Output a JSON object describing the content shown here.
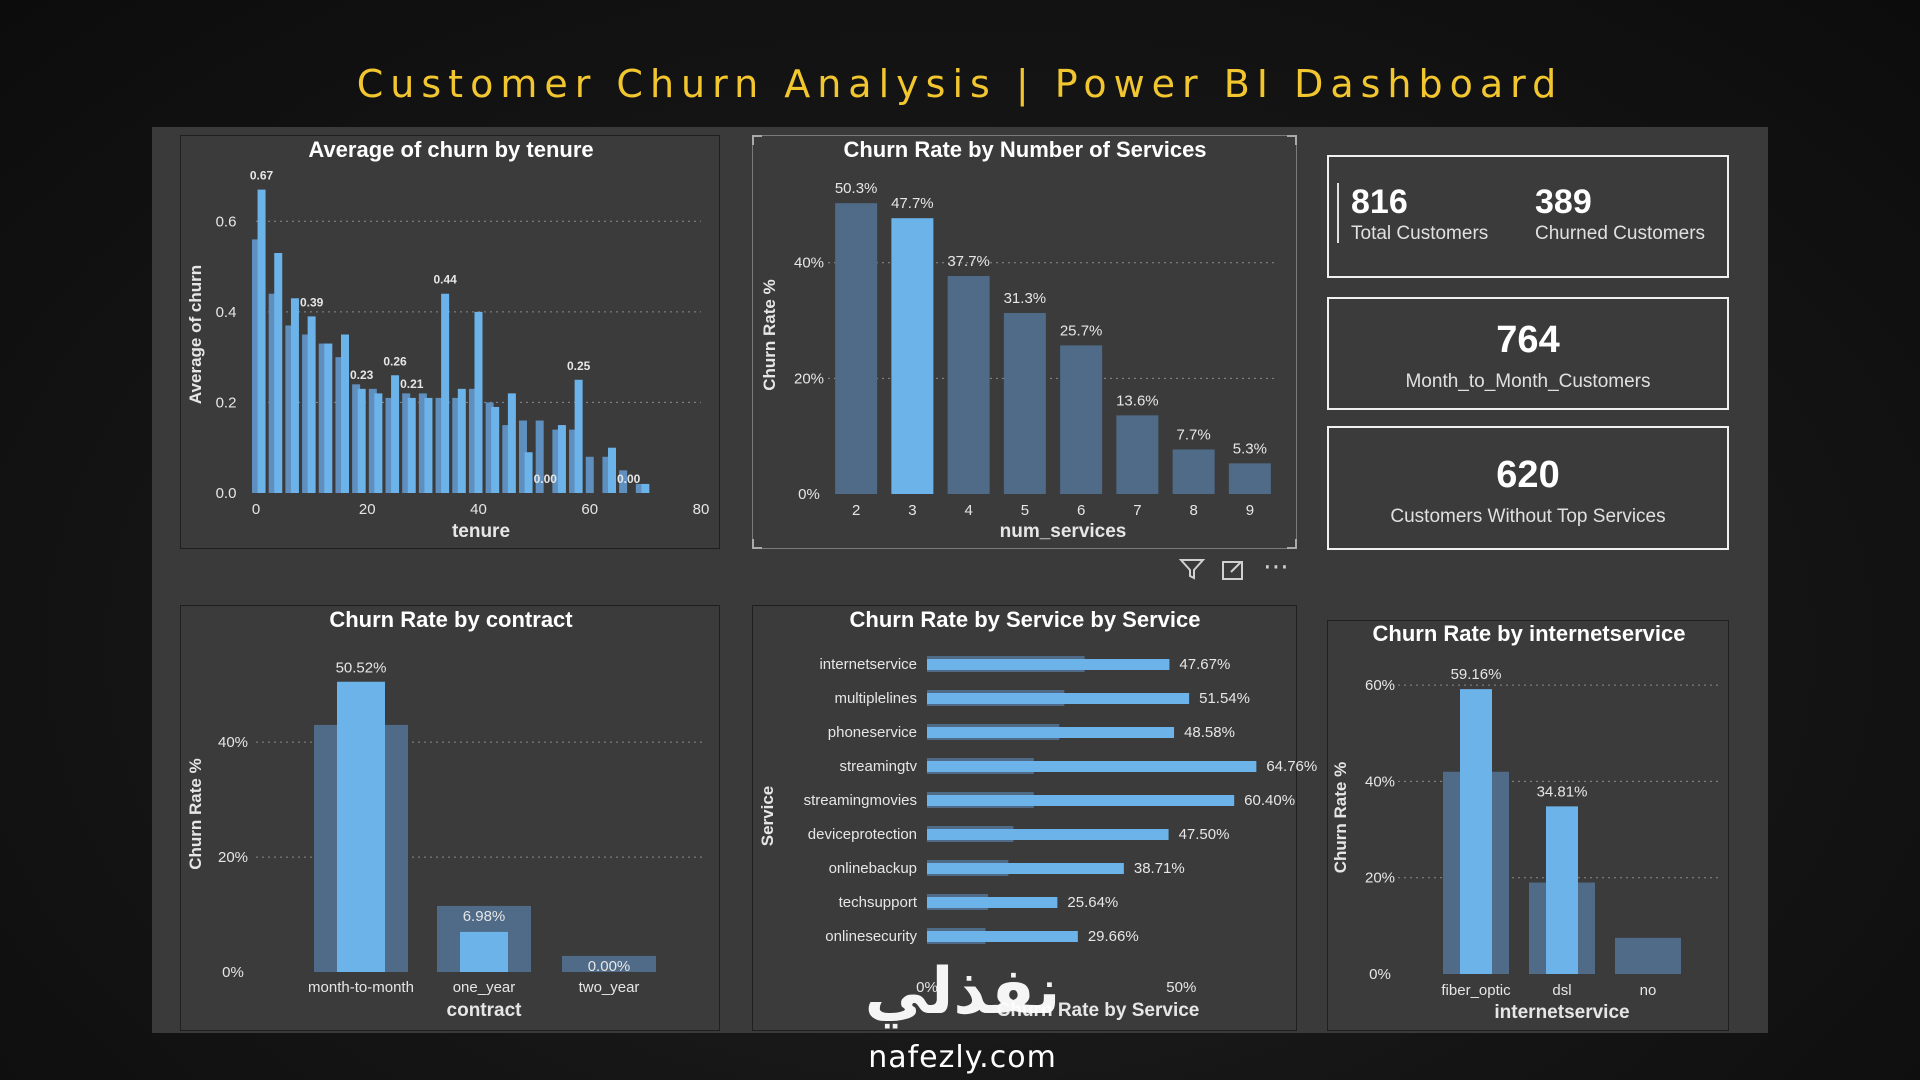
{
  "page": {
    "title": "Customer Churn Analysis | Power BI Dashboard"
  },
  "watermark": {
    "logo_text": "نفذلي",
    "url": "nafezly.com"
  },
  "colors": {
    "bar_light": "#6cb3ea",
    "bar_dark": "#4f6b88",
    "title": "#f2c62e",
    "panel": "#3b3b3b"
  },
  "kpis": {
    "total_customers": {
      "value": "816",
      "label": "Total Customers"
    },
    "churned_customers": {
      "value": "389",
      "label": "Churned Customers"
    },
    "month_to_month": {
      "value": "764",
      "label": "Month_to_Month_Customers"
    },
    "without_top_services": {
      "value": "620",
      "label": "Customers Without Top Services"
    }
  },
  "toolbar": {
    "icons": [
      "filter-icon",
      "focus-mode-icon",
      "more-options-icon"
    ]
  },
  "chart_data": [
    {
      "id": "tenure",
      "type": "bar",
      "title": "Average of churn by tenure",
      "xlabel": "tenure",
      "ylabel": "Average of churn",
      "xlim": [
        0,
        80
      ],
      "ylim": [
        0,
        0.7
      ],
      "x_ticks": [
        "0",
        "20",
        "40",
        "60",
        "80"
      ],
      "y_ticks": [
        "0.0",
        "0.2",
        "0.4",
        "0.6"
      ],
      "grid": true,
      "x": [
        0,
        1,
        3,
        4,
        6,
        7,
        9,
        10,
        12,
        13,
        15,
        16,
        18,
        19,
        21,
        22,
        24,
        25,
        27,
        28,
        30,
        31,
        33,
        34,
        36,
        37,
        39,
        40,
        42,
        43,
        45,
        46,
        48,
        49,
        51,
        52,
        54,
        55,
        57,
        58,
        60,
        61,
        63,
        64,
        66,
        67,
        69,
        70,
        72
      ],
      "series": [
        {
          "values": [
            0.56,
            0.67,
            0.44,
            0.53,
            0.37,
            0.43,
            0.35,
            0.39,
            0.33,
            0.33,
            0.3,
            0.35,
            0.24,
            0.23,
            0.23,
            0.22,
            0.21,
            0.26,
            0.22,
            0.21,
            0.22,
            0.21,
            0.21,
            0.44,
            0.21,
            0.23,
            0.23,
            0.4,
            0.2,
            0.19,
            0.15,
            0.22,
            0.16,
            0.09,
            0.16,
            0.0,
            0.14,
            0.15,
            0.14,
            0.25,
            0.08,
            0.0,
            0.08,
            0.1,
            0.05,
            0.0,
            0.02,
            0.02,
            0.0
          ]
        }
      ],
      "data_labels": [
        {
          "x": 1,
          "y": 0.67,
          "label": "0.67"
        },
        {
          "x": 10,
          "y": 0.39,
          "label": "0.39"
        },
        {
          "x": 19,
          "y": 0.23,
          "label": "0.23"
        },
        {
          "x": 25,
          "y": 0.26,
          "label": "0.26"
        },
        {
          "x": 28,
          "y": 0.21,
          "label": "0.21"
        },
        {
          "x": 34,
          "y": 0.44,
          "label": "0.44"
        },
        {
          "x": 52,
          "y": 0.0,
          "label": "0.00"
        },
        {
          "x": 58,
          "y": 0.25,
          "label": "0.25"
        },
        {
          "x": 67,
          "y": 0.0,
          "label": "0.00"
        }
      ]
    },
    {
      "id": "services",
      "type": "bar",
      "title": "Churn Rate by Number of Services",
      "xlabel": "num_services",
      "ylabel": "Churn Rate %",
      "ylim": [
        0,
        55
      ],
      "y_ticks": [
        "0%",
        "20%",
        "40%"
      ],
      "categories": [
        "2",
        "3",
        "4",
        "5",
        "6",
        "7",
        "8",
        "9"
      ],
      "values": [
        50.3,
        47.7,
        37.7,
        31.3,
        25.7,
        13.6,
        7.7,
        5.3
      ],
      "labels": [
        "50.3%",
        "47.7%",
        "37.7%",
        "31.3%",
        "25.7%",
        "13.6%",
        "7.7%",
        "5.3%"
      ],
      "highlight_index": 1
    },
    {
      "id": "contract",
      "type": "bar",
      "title": "Churn Rate by contract",
      "xlabel": "contract",
      "ylabel": "Churn Rate %",
      "ylim": [
        0,
        55
      ],
      "y_ticks": [
        "0%",
        "20%",
        "40%"
      ],
      "categories": [
        "month-to-month",
        "one_year",
        "two_year"
      ],
      "back_values": [
        43,
        11.5,
        2.8
      ],
      "values": [
        50.52,
        6.98,
        0.0
      ],
      "labels": [
        "50.52%",
        "6.98%",
        "0.00%"
      ]
    },
    {
      "id": "service",
      "type": "bar",
      "orientation": "horizontal",
      "title": "Churn Rate by Service by Service",
      "xlabel": "Churn Rate by Service",
      "ylabel": "Service",
      "xlim": [
        0,
        70
      ],
      "x_ticks": [
        "0%",
        "50%"
      ],
      "categories": [
        "internetservice",
        "multiplelines",
        "phoneservice",
        "streamingtv",
        "streamingmovies",
        "deviceprotection",
        "onlinebackup",
        "techsupport",
        "onlinesecurity"
      ],
      "back_values": [
        31,
        27,
        26,
        21,
        21,
        17,
        16,
        12,
        11.5
      ],
      "values": [
        47.67,
        51.54,
        48.58,
        64.76,
        60.4,
        47.5,
        38.71,
        25.64,
        29.66
      ],
      "labels": [
        "47.67%",
        "51.54%",
        "48.58%",
        "64.76%",
        "60.40%",
        "47.50%",
        "38.71%",
        "25.64%",
        "29.66%"
      ]
    },
    {
      "id": "internet",
      "type": "bar",
      "title": "Churn Rate by internetservice",
      "xlabel": "internetservice",
      "ylabel": "Churn Rate %",
      "ylim": [
        0,
        65
      ],
      "y_ticks": [
        "0%",
        "20%",
        "40%",
        "60%"
      ],
      "categories": [
        "fiber_optic",
        "dsl",
        "no"
      ],
      "back_values": [
        42,
        19,
        7.5
      ],
      "values": [
        59.16,
        34.81,
        0
      ],
      "labels": [
        "59.16%",
        "34.81%",
        ""
      ]
    }
  ]
}
